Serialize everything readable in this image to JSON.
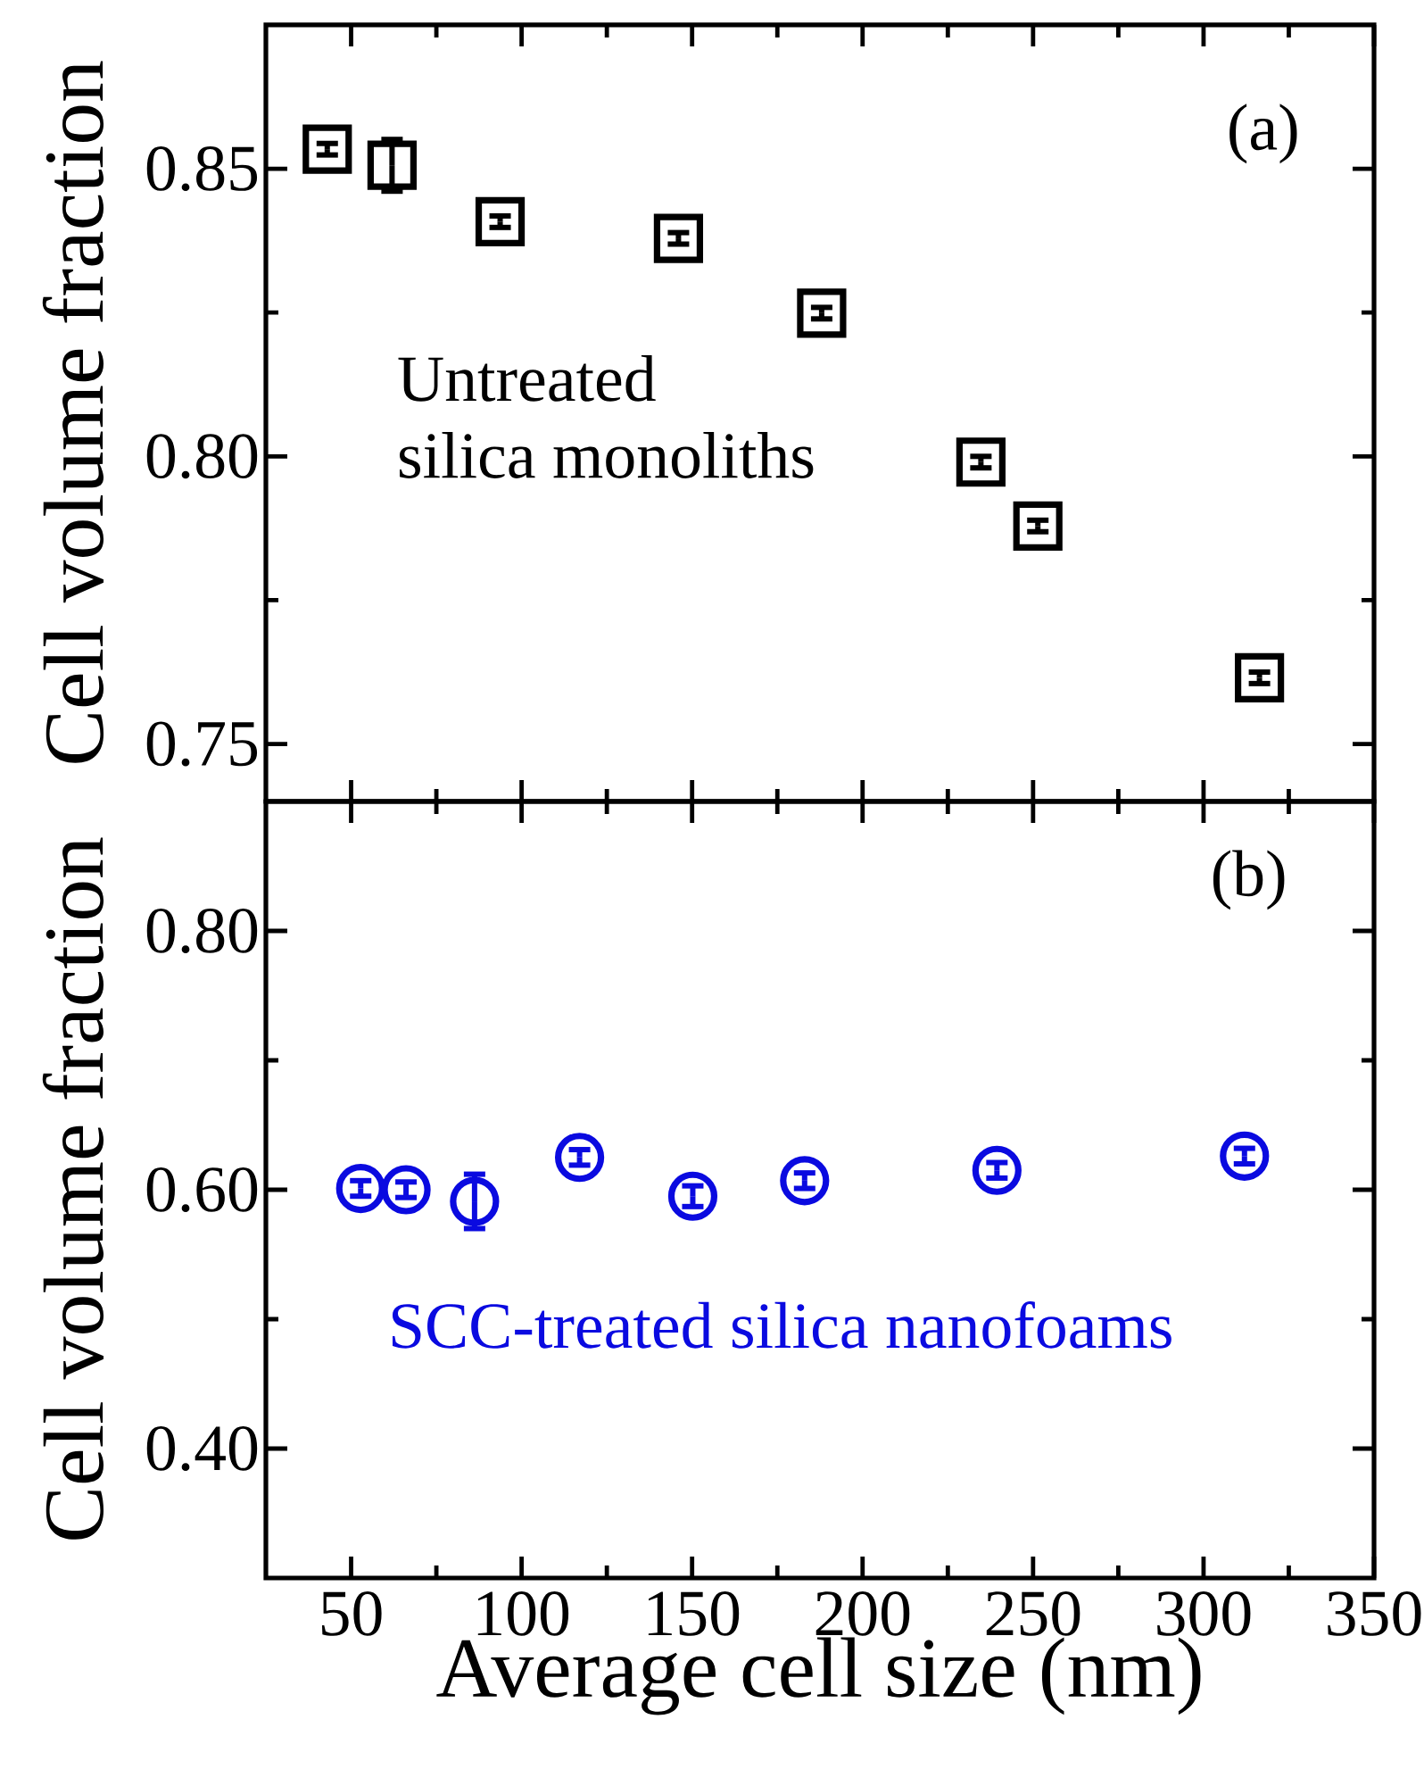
{
  "chart_data": [
    {
      "type": "scatter",
      "ylabel": "Cell volume fraction",
      "annotations": [
        "(a)",
        "Untreated",
        "silica monoliths"
      ],
      "xlim": [
        25,
        350
      ],
      "xticks": [
        50,
        100,
        150,
        200,
        250,
        300,
        350
      ],
      "ylim": [
        0.74,
        0.875
      ],
      "yticks": [
        {
          "value": 0.75,
          "label": "0.75"
        },
        {
          "value": 0.8,
          "label": "0.80"
        },
        {
          "value": 0.85,
          "label": "0.85"
        }
      ],
      "tick_labels": "y",
      "marker": "square",
      "series": [
        {
          "color": "#000000",
          "x": [
            43,
            62,
            93.7,
            146,
            188,
            234.7,
            251.4,
            316.4
          ],
          "values": [
            0.8534,
            0.8506,
            0.8408,
            0.8379,
            0.8249,
            0.799,
            0.7879,
            0.7615
          ],
          "errors": [
            0.001,
            0.0045,
            0.001,
            0.001,
            0.001,
            0.001,
            0.001,
            0.001
          ]
        }
      ]
    },
    {
      "type": "scatter",
      "ylabel": "Cell volume fraction",
      "xlabel": "Average cell size (nm)",
      "annotations": [
        "(b)",
        "SCC-treated silica nanofoams"
      ],
      "xlim": [
        25,
        350
      ],
      "xticks": [
        50,
        100,
        150,
        200,
        250,
        300,
        350
      ],
      "ylim": [
        0.3,
        0.9
      ],
      "yticks": [
        {
          "value": 0.4,
          "label": "0.40"
        },
        {
          "value": 0.6,
          "label": "0.60"
        },
        {
          "value": 0.8,
          "label": "0.80"
        }
      ],
      "marker": "circle",
      "series": [
        {
          "color": "#0a0ae0",
          "x": [
            52.8,
            66.1,
            86.2,
            117,
            150.2,
            183,
            239.4,
            312
          ],
          "values": [
            0.601,
            0.6,
            0.591,
            0.625,
            0.595,
            0.607,
            0.615,
            0.626
          ],
          "errors": [
            0.006,
            0.006,
            0.021,
            0.006,
            0.008,
            0.006,
            0.006,
            0.006
          ]
        }
      ]
    }
  ]
}
